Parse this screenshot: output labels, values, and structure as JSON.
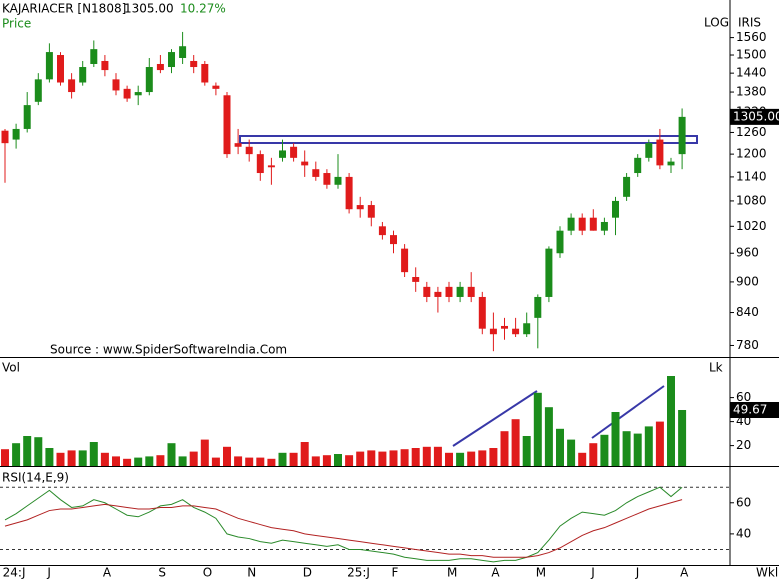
{
  "chart_data": [
    {
      "type": "candlestick",
      "title": "KAJARIACER [N1808]",
      "close_label": "1305.00",
      "change": "10.27%",
      "axis_label": "Price",
      "scale_label": "LOG",
      "indicator": "IRIS",
      "source": "Source : www.SpiderSoftwareIndia.Com",
      "log_scale": true,
      "up_color": "#1b8c1b",
      "down_color": "#e01b1b",
      "categories": [
        null,
        "24:J",
        null,
        null,
        "J",
        null,
        null,
        null,
        null,
        "A",
        null,
        null,
        null,
        null,
        "S",
        null,
        null,
        null,
        "O",
        null,
        null,
        null,
        "N",
        null,
        null,
        null,
        null,
        "D",
        null,
        null,
        null,
        "25:J",
        null,
        null,
        null,
        "F",
        null,
        null,
        null,
        null,
        "M",
        null,
        null,
        null,
        "A",
        null,
        null,
        null,
        "M",
        null,
        null,
        null,
        null,
        "J",
        null,
        null,
        null,
        "J",
        null,
        null,
        null,
        "A"
      ],
      "open": [
        1265,
        1240,
        1270,
        1350,
        1420,
        1500,
        1420,
        1410,
        1470,
        1480,
        1420,
        1390,
        1370,
        1380,
        1470,
        1460,
        1490,
        1480,
        1470,
        1400,
        1370,
        1230,
        1220,
        1200,
        1170,
        1190,
        1220,
        1180,
        1160,
        1150,
        1120,
        1140,
        1070,
        1070,
        1020,
        1000,
        970,
        910,
        890,
        880,
        890,
        870,
        890,
        870,
        810,
        815,
        810,
        800,
        830,
        870,
        960,
        1010,
        1040,
        1040,
        1010,
        1040,
        1090,
        1150,
        1190,
        1240,
        1170,
        1200
      ],
      "high": [
        1270,
        1285,
        1380,
        1440,
        1540,
        1510,
        1440,
        1480,
        1550,
        1500,
        1440,
        1400,
        1400,
        1490,
        1500,
        1520,
        1580,
        1500,
        1480,
        1410,
        1380,
        1270,
        1240,
        1210,
        1190,
        1240,
        1230,
        1210,
        1180,
        1160,
        1200,
        1150,
        1090,
        1080,
        1030,
        1010,
        980,
        930,
        900,
        890,
        900,
        900,
        920,
        880,
        840,
        830,
        830,
        840,
        875,
        975,
        1020,
        1050,
        1050,
        1060,
        1040,
        1090,
        1150,
        1200,
        1240,
        1270,
        1190,
        1330
      ],
      "low": [
        1125,
        1215,
        1260,
        1340,
        1410,
        1400,
        1360,
        1400,
        1460,
        1430,
        1370,
        1350,
        1340,
        1370,
        1440,
        1440,
        1470,
        1440,
        1400,
        1370,
        1190,
        1200,
        1180,
        1130,
        1120,
        1180,
        1180,
        1140,
        1130,
        1110,
        1110,
        1050,
        1040,
        1020,
        990,
        960,
        910,
        880,
        860,
        840,
        860,
        860,
        860,
        800,
        770,
        790,
        795,
        795,
        775,
        860,
        950,
        1000,
        1000,
        1010,
        1000,
        1000,
        1080,
        1140,
        1180,
        1160,
        1150,
        1160
      ],
      "close": [
        1230,
        1270,
        1340,
        1420,
        1510,
        1410,
        1380,
        1460,
        1520,
        1450,
        1385,
        1360,
        1380,
        1460,
        1450,
        1510,
        1530,
        1460,
        1410,
        1390,
        1200,
        1220,
        1200,
        1150,
        1165,
        1210,
        1190,
        1170,
        1140,
        1120,
        1140,
        1060,
        1060,
        1040,
        1000,
        980,
        920,
        900,
        870,
        870,
        870,
        890,
        870,
        810,
        800,
        810,
        800,
        820,
        870,
        970,
        1010,
        1040,
        1010,
        1010,
        1030,
        1080,
        1140,
        1190,
        1230,
        1170,
        1180,
        1305
      ],
      "ylim": [
        760,
        1660
      ],
      "yticks": [
        780,
        840,
        900,
        960,
        1020,
        1080,
        1140,
        1200,
        1260,
        1320,
        1380,
        1440,
        1500,
        1560
      ]
    },
    {
      "type": "bar",
      "title": "Vol",
      "unit": "Lk",
      "values": [
        17,
        22,
        28,
        27,
        18,
        14,
        16,
        16,
        23,
        14,
        11,
        9,
        10,
        11,
        12,
        22,
        11,
        15,
        25,
        10,
        19,
        11,
        10,
        10,
        9,
        14,
        14,
        23,
        11,
        12,
        13,
        12,
        15,
        16,
        15,
        16,
        17,
        18,
        19,
        19,
        14,
        14,
        15,
        16,
        18,
        32,
        42,
        28,
        64,
        52,
        34,
        25,
        14,
        22,
        29,
        48,
        32,
        30,
        36,
        40,
        78,
        49.67
      ],
      "ylim": [
        3,
        93
      ],
      "yticks": [
        20,
        40,
        60
      ]
    },
    {
      "type": "line",
      "title": "RSI(14,E,9)",
      "x_label": "Wkl",
      "series": [
        {
          "name": "RSI",
          "color": "#2a8a2a",
          "values": [
            49,
            53,
            58,
            63,
            68,
            62,
            57,
            58,
            62,
            60,
            56,
            52,
            51,
            54,
            58,
            59,
            62,
            57,
            54,
            50,
            40,
            38,
            37,
            35,
            34,
            36,
            35,
            34,
            33,
            32,
            33,
            30,
            30,
            29,
            28,
            27,
            25,
            24,
            23,
            23,
            23,
            24,
            24,
            23,
            22,
            23,
            23,
            25,
            28,
            36,
            45,
            50,
            54,
            53,
            52,
            55,
            60,
            64,
            67,
            70,
            64,
            70
          ]
        },
        {
          "name": "Signal",
          "color": "#b22222",
          "values": [
            45,
            47,
            49,
            52,
            55,
            56,
            56,
            57,
            58,
            59,
            58,
            57,
            56,
            56,
            57,
            57,
            58,
            58,
            57,
            56,
            53,
            50,
            48,
            46,
            44,
            43,
            42,
            40,
            39,
            38,
            37,
            36,
            35,
            34,
            33,
            32,
            31,
            30,
            29,
            28,
            27,
            27,
            26,
            26,
            25,
            25,
            25,
            25,
            26,
            28,
            31,
            35,
            39,
            42,
            44,
            47,
            50,
            53,
            56,
            58,
            60,
            62
          ]
        }
      ],
      "reference_lines": [
        30,
        70
      ],
      "ylim": [
        20,
        83
      ],
      "yticks": [
        40,
        60
      ]
    }
  ]
}
